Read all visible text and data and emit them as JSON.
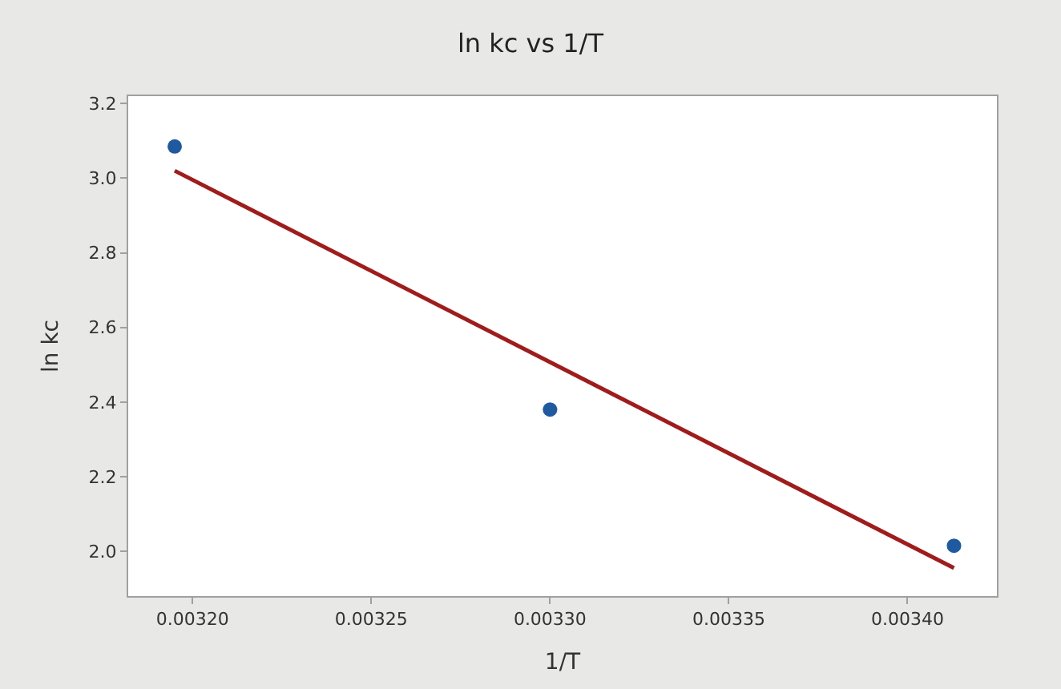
{
  "chart_data": {
    "type": "scatter",
    "title": "ln kc vs 1/T",
    "xlabel": "1/T",
    "ylabel": "ln kc",
    "xlim": [
      0.003182,
      0.003425
    ],
    "xticks": [
      {
        "value": 0.0032,
        "label": "0.00320"
      },
      {
        "value": 0.00325,
        "label": "0.00325"
      },
      {
        "value": 0.0033,
        "label": "0.00330"
      },
      {
        "value": 0.00335,
        "label": "0.00335"
      },
      {
        "value": 0.0034,
        "label": "0.00340"
      }
    ],
    "ylim": [
      1.88,
      3.22
    ],
    "yticks": [
      {
        "value": 2.0,
        "label": "2.0"
      },
      {
        "value": 2.2,
        "label": "2.2"
      },
      {
        "value": 2.4,
        "label": "2.4"
      },
      {
        "value": 2.6,
        "label": "2.6"
      },
      {
        "value": 2.8,
        "label": "2.8"
      },
      {
        "value": 3.0,
        "label": "3.0"
      },
      {
        "value": 3.2,
        "label": "3.2"
      }
    ],
    "grid": false,
    "legend": false,
    "series": [
      {
        "marker": "circle",
        "color": "#1f5aa0",
        "x": [
          0.003195,
          0.0033,
          0.003413
        ],
        "values": [
          3.085,
          2.38,
          2.015
        ]
      },
      {
        "type": "line",
        "color": "#a01c1c",
        "x": [
          0.003195,
          0.003413
        ],
        "values": [
          3.02,
          1.955
        ]
      }
    ]
  }
}
